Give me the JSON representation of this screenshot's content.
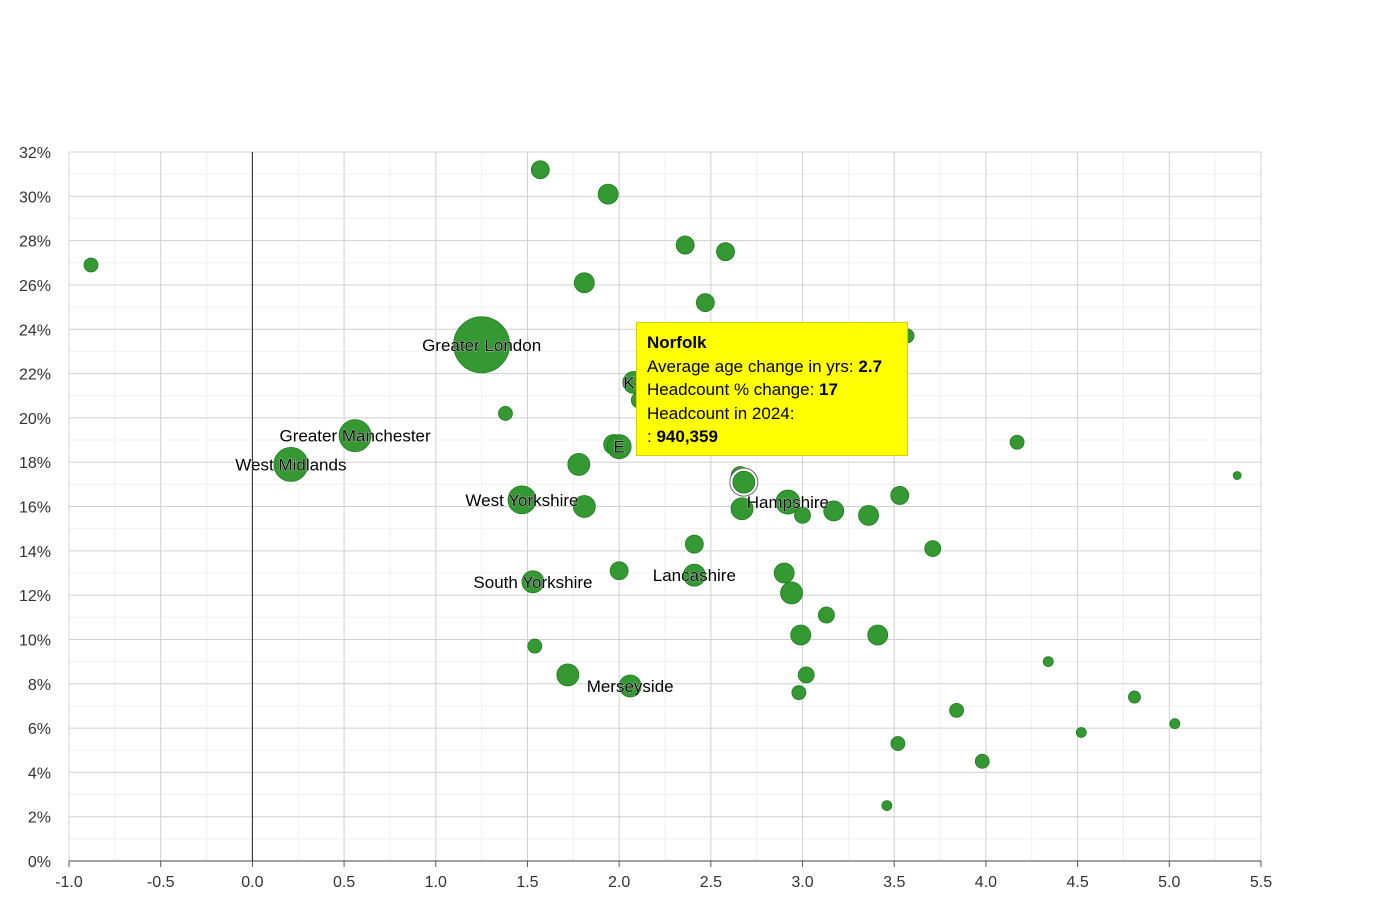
{
  "chart_data": {
    "type": "scatter",
    "xlim": [
      -1.0,
      5.5
    ],
    "ylim": [
      0,
      32
    ],
    "x_ticks": [
      "-1.0",
      "-0.5",
      "0.0",
      "0.5",
      "1.0",
      "1.5",
      "2.0",
      "2.5",
      "3.0",
      "3.5",
      "4.0",
      "4.5",
      "5.0",
      "5.5"
    ],
    "y_ticks": [
      "0%",
      "2%",
      "4%",
      "6%",
      "8%",
      "10%",
      "12%",
      "14%",
      "16%",
      "18%",
      "20%",
      "22%",
      "24%",
      "26%",
      "28%",
      "30%",
      "32%"
    ],
    "grid": true,
    "point_color": "#2a9428",
    "points": [
      {
        "x": -0.88,
        "y": 26.9,
        "r": 7
      },
      {
        "x": 0.21,
        "y": 17.9,
        "r": 17,
        "label": "West Midlands"
      },
      {
        "x": 0.56,
        "y": 19.2,
        "r": 16,
        "label": "Greater Manchester"
      },
      {
        "x": 1.25,
        "y": 23.3,
        "r": 28,
        "label": "Greater London"
      },
      {
        "x": 1.38,
        "y": 20.2,
        "r": 7
      },
      {
        "x": 1.47,
        "y": 16.3,
        "r": 14,
        "label": "West Yorkshire"
      },
      {
        "x": 1.53,
        "y": 12.6,
        "r": 11,
        "label": "South Yorkshire"
      },
      {
        "x": 1.54,
        "y": 9.7,
        "r": 7
      },
      {
        "x": 1.57,
        "y": 31.2,
        "r": 9
      },
      {
        "x": 1.72,
        "y": 8.4,
        "r": 11
      },
      {
        "x": 1.78,
        "y": 17.9,
        "r": 11
      },
      {
        "x": 1.81,
        "y": 26.1,
        "r": 10
      },
      {
        "x": 1.81,
        "y": 16.0,
        "r": 11
      },
      {
        "x": 1.94,
        "y": 30.1,
        "r": 10
      },
      {
        "x": 1.97,
        "y": 18.8,
        "r": 10
      },
      {
        "x": 2.0,
        "y": 18.7,
        "r": 12,
        "label": "Essex",
        "label_visible": "E"
      },
      {
        "x": 2.0,
        "y": 13.1,
        "r": 9
      },
      {
        "x": 2.06,
        "y": 7.9,
        "r": 11,
        "label": "Merseyside"
      },
      {
        "x": 2.08,
        "y": 21.6,
        "r": 11,
        "label": "Kent",
        "label_visible": "Ke"
      },
      {
        "x": 2.11,
        "y": 20.8,
        "r": 8
      },
      {
        "x": 2.36,
        "y": 27.8,
        "r": 9
      },
      {
        "x": 2.41,
        "y": 14.3,
        "r": 9
      },
      {
        "x": 2.41,
        "y": 12.9,
        "r": 11,
        "label": "Lancashire"
      },
      {
        "x": 2.47,
        "y": 25.2,
        "r": 9
      },
      {
        "x": 2.58,
        "y": 27.5,
        "r": 9
      },
      {
        "x": 2.66,
        "y": 17.4,
        "r": 9
      },
      {
        "x": 2.67,
        "y": 15.9,
        "r": 11
      },
      {
        "x": 2.68,
        "y": 17.1,
        "r": 11,
        "highlighted": true
      },
      {
        "x": 2.9,
        "y": 13.0,
        "r": 10
      },
      {
        "x": 2.92,
        "y": 16.2,
        "r": 12,
        "label": "Hampshire"
      },
      {
        "x": 2.94,
        "y": 12.1,
        "r": 11
      },
      {
        "x": 2.98,
        "y": 7.6,
        "r": 7
      },
      {
        "x": 2.99,
        "y": 10.2,
        "r": 10
      },
      {
        "x": 3.0,
        "y": 15.6,
        "r": 8
      },
      {
        "x": 3.02,
        "y": 8.4,
        "r": 8
      },
      {
        "x": 3.13,
        "y": 11.1,
        "r": 8
      },
      {
        "x": 3.17,
        "y": 15.8,
        "r": 10
      },
      {
        "x": 3.36,
        "y": 15.6,
        "r": 10
      },
      {
        "x": 3.41,
        "y": 10.2,
        "r": 10
      },
      {
        "x": 3.46,
        "y": 2.5,
        "r": 5
      },
      {
        "x": 3.52,
        "y": 5.3,
        "r": 7
      },
      {
        "x": 3.53,
        "y": 16.5,
        "r": 9
      },
      {
        "x": 3.57,
        "y": 23.7,
        "r": 7
      },
      {
        "x": 3.71,
        "y": 14.1,
        "r": 8
      },
      {
        "x": 3.84,
        "y": 6.8,
        "r": 7
      },
      {
        "x": 3.98,
        "y": 4.5,
        "r": 7
      },
      {
        "x": 4.17,
        "y": 18.9,
        "r": 7
      },
      {
        "x": 4.34,
        "y": 9.0,
        "r": 5
      },
      {
        "x": 4.52,
        "y": 5.8,
        "r": 5
      },
      {
        "x": 4.81,
        "y": 7.4,
        "r": 6
      },
      {
        "x": 5.03,
        "y": 6.2,
        "r": 5
      },
      {
        "x": 5.37,
        "y": 17.4,
        "r": 4
      }
    ],
    "tooltip": {
      "title": "Norfolk",
      "line1_label": "Average age change in yrs: ",
      "line1_value": "2.7",
      "line2_label": "Headcount % change: ",
      "line2_value": "17",
      "line3_label": "Headcount in 2024:",
      "line4_label": ": ",
      "line4_value": "940,359",
      "background": "#ffff00"
    }
  }
}
